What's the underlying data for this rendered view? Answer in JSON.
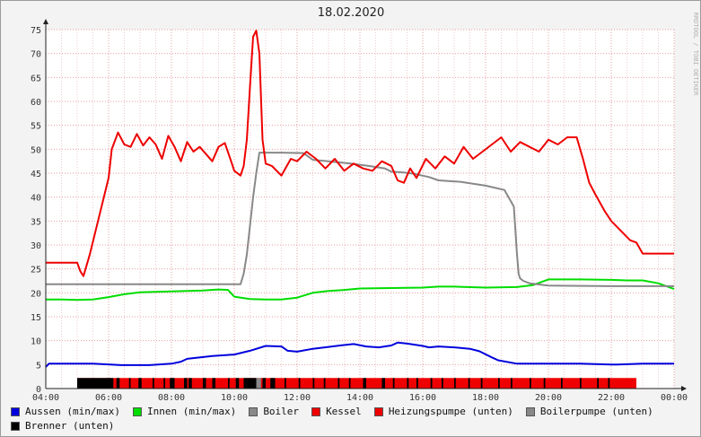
{
  "chart_data": {
    "type": "line",
    "title": "18.02.2020",
    "watermark": "RRDTOOL / TOBI OETIKER",
    "x_unit": "hour of day",
    "xlim": [
      4,
      24
    ],
    "ylim": [
      0,
      75
    ],
    "x_ticks": [
      4,
      6,
      8,
      10,
      12,
      14,
      16,
      18,
      20,
      22,
      24
    ],
    "x_tick_labels": [
      "04:00",
      "06:00",
      "08:00",
      "10:00",
      "12:00",
      "14:00",
      "16:00",
      "18:00",
      "20:00",
      "22:00",
      "00:00"
    ],
    "y_ticks": [
      0,
      5,
      10,
      15,
      20,
      25,
      30,
      35,
      40,
      45,
      50,
      55,
      60,
      65,
      70,
      75
    ],
    "y_tick_labels": [
      "0",
      "5",
      "10",
      "15",
      "20",
      "25",
      "30",
      "35",
      "40",
      "45",
      "50",
      "55",
      "60",
      "65",
      "70",
      "75"
    ],
    "grid": true,
    "legend_position": "bottom",
    "series": [
      {
        "name": "Aussen (min/max)",
        "color": "#0000dd",
        "x": [
          4,
          4.1,
          5.5,
          6.4,
          7.3,
          8.0,
          8.3,
          8.5,
          9.3,
          10.0,
          10.5,
          11.0,
          11.5,
          11.7,
          12.0,
          12.5,
          13.0,
          13.5,
          13.8,
          14.2,
          14.6,
          15.0,
          15.2,
          15.5,
          16.0,
          16.2,
          16.5,
          17.0,
          17.5,
          17.8,
          18.2,
          18.4,
          19.0,
          20.0,
          21.0,
          22.0,
          22.2,
          23.0,
          24.0
        ],
        "y": [
          4.5,
          5.2,
          5.2,
          4.9,
          4.9,
          5.2,
          5.6,
          6.2,
          6.8,
          7.1,
          7.9,
          8.9,
          8.8,
          7.9,
          7.7,
          8.3,
          8.7,
          9.1,
          9.3,
          8.8,
          8.6,
          9.0,
          9.6,
          9.4,
          8.9,
          8.6,
          8.8,
          8.6,
          8.3,
          7.8,
          6.5,
          5.9,
          5.2,
          5.2,
          5.2,
          5.0,
          5.0,
          5.2,
          5.2
        ]
      },
      {
        "name": "Innen (min/max)",
        "color": "#00dd00",
        "x": [
          4,
          4.5,
          5.0,
          5.5,
          6.0,
          6.5,
          7.0,
          8.0,
          9.0,
          9.5,
          9.8,
          10.0,
          10.5,
          11.0,
          11.5,
          12.0,
          12.5,
          13.0,
          13.5,
          14.0,
          15.0,
          16.0,
          16.5,
          17.0,
          18.0,
          19.0,
          19.5,
          20.0,
          21.0,
          22.0,
          22.5,
          23.0,
          23.5,
          24.0
        ],
        "y": [
          18.6,
          18.6,
          18.5,
          18.6,
          19.1,
          19.7,
          20.1,
          20.3,
          20.5,
          20.7,
          20.6,
          19.2,
          18.7,
          18.6,
          18.6,
          19.0,
          20.0,
          20.4,
          20.6,
          20.9,
          21.0,
          21.1,
          21.3,
          21.3,
          21.1,
          21.2,
          21.6,
          22.8,
          22.8,
          22.7,
          22.6,
          22.6,
          22.0,
          20.8
        ]
      },
      {
        "name": "Boiler",
        "color": "#888888",
        "x": [
          4,
          10.2,
          10.3,
          10.4,
          10.5,
          10.6,
          10.7,
          10.8,
          11.5,
          12.2,
          12.5,
          13.0,
          13.7,
          14.3,
          14.8,
          15.0,
          15.3,
          15.7,
          16.2,
          16.5,
          17.2,
          18.0,
          18.6,
          18.9,
          19.0,
          19.05,
          19.1,
          19.2,
          19.4,
          20.0,
          22.0,
          24.0
        ],
        "y": [
          21.8,
          21.8,
          24.0,
          28.0,
          34.0,
          40.0,
          45.0,
          49.3,
          49.3,
          49.2,
          47.8,
          47.5,
          47.0,
          46.5,
          46.0,
          45.3,
          45.2,
          44.9,
          44.2,
          43.5,
          43.2,
          42.4,
          41.5,
          38.0,
          28.0,
          24.0,
          23.0,
          22.5,
          22.0,
          21.5,
          21.4,
          21.4
        ]
      },
      {
        "name": "Kessel",
        "color": "#ee0000",
        "x": [
          4,
          5.0,
          5.1,
          5.2,
          5.4,
          5.7,
          6.0,
          6.1,
          6.3,
          6.5,
          6.7,
          6.9,
          7.1,
          7.3,
          7.5,
          7.7,
          7.9,
          8.1,
          8.3,
          8.5,
          8.7,
          8.9,
          9.1,
          9.3,
          9.5,
          9.7,
          9.9,
          10.0,
          10.2,
          10.3,
          10.4,
          10.5,
          10.6,
          10.7,
          10.8,
          10.9,
          11.0,
          11.2,
          11.5,
          11.8,
          12.0,
          12.3,
          12.6,
          12.9,
          13.2,
          13.5,
          13.8,
          14.1,
          14.4,
          14.7,
          15.0,
          15.2,
          15.4,
          15.6,
          15.8,
          16.1,
          16.4,
          16.7,
          17.0,
          17.3,
          17.6,
          17.9,
          18.2,
          18.5,
          18.8,
          19.1,
          19.4,
          19.7,
          20.0,
          20.3,
          20.6,
          20.9,
          21.1,
          21.3,
          21.5,
          21.8,
          22.0,
          22.3,
          22.6,
          22.8,
          23.0,
          24.0
        ],
        "y": [
          26.3,
          26.3,
          24.5,
          23.5,
          28.0,
          36.0,
          44.0,
          50.0,
          53.5,
          51.0,
          50.5,
          53.2,
          50.8,
          52.5,
          51.0,
          48.0,
          52.8,
          50.5,
          47.5,
          51.5,
          49.5,
          50.5,
          49.0,
          47.5,
          50.5,
          51.3,
          47.5,
          45.5,
          44.5,
          46.5,
          52.0,
          63.0,
          73.5,
          74.8,
          70.0,
          52.0,
          47.0,
          46.5,
          44.5,
          48.0,
          47.5,
          49.5,
          48.0,
          46.0,
          48.0,
          45.5,
          47.0,
          46.0,
          45.5,
          47.5,
          46.5,
          43.5,
          43.0,
          46.0,
          44.0,
          48.0,
          46.0,
          48.5,
          47.0,
          50.5,
          48.0,
          49.5,
          51.0,
          52.5,
          49.5,
          51.5,
          50.5,
          49.5,
          52.0,
          51.0,
          52.5,
          52.5,
          48.0,
          43.0,
          40.5,
          37.0,
          35.0,
          33.0,
          31.0,
          30.5,
          28.2,
          28.2
        ]
      }
    ],
    "on_off_bars": {
      "y_range": [
        0,
        2.2
      ],
      "heizungspumpe": {
        "name": "Heizungspumpe (unten)",
        "color": "#ee0000",
        "on": [
          [
            5.0,
            22.8
          ]
        ]
      },
      "boilerpumpe": {
        "name": "Boilerpumpe (unten)",
        "color": "#888888",
        "on": [
          [
            10.7,
            10.85
          ]
        ]
      },
      "brenner": {
        "name": "Brenner (unten)",
        "color": "#000000",
        "on": [
          [
            5.0,
            6.15
          ],
          [
            6.25,
            6.35
          ],
          [
            6.65,
            6.7
          ],
          [
            6.95,
            7.05
          ],
          [
            7.4,
            7.45
          ],
          [
            7.75,
            7.8
          ],
          [
            7.95,
            8.1
          ],
          [
            8.4,
            8.5
          ],
          [
            8.55,
            8.65
          ],
          [
            9.0,
            9.1
          ],
          [
            9.3,
            9.4
          ],
          [
            9.8,
            9.85
          ],
          [
            10.05,
            10.15
          ],
          [
            10.3,
            10.7
          ],
          [
            10.9,
            11.0
          ],
          [
            11.15,
            11.3
          ],
          [
            11.6,
            11.65
          ],
          [
            12.05,
            12.1
          ],
          [
            12.5,
            12.55
          ],
          [
            12.85,
            12.9
          ],
          [
            13.3,
            13.35
          ],
          [
            13.65,
            13.7
          ],
          [
            14.1,
            14.2
          ],
          [
            14.7,
            14.8
          ],
          [
            15.05,
            15.1
          ],
          [
            15.5,
            15.55
          ],
          [
            15.8,
            15.85
          ],
          [
            16.25,
            16.3
          ],
          [
            16.6,
            16.65
          ],
          [
            17.0,
            17.05
          ],
          [
            17.45,
            17.5
          ],
          [
            17.85,
            17.9
          ],
          [
            18.4,
            18.45
          ],
          [
            18.8,
            18.85
          ],
          [
            19.4,
            19.45
          ],
          [
            19.85,
            19.9
          ],
          [
            20.4,
            20.45
          ],
          [
            21.0,
            21.05
          ],
          [
            21.55,
            21.6
          ],
          [
            21.9,
            21.95
          ]
        ]
      }
    }
  },
  "legend": [
    {
      "label": "Aussen (min/max)",
      "color": "#0000dd"
    },
    {
      "label": "Innen (min/max)",
      "color": "#00dd00"
    },
    {
      "label": "Boiler",
      "color": "#888888"
    },
    {
      "label": "Kessel",
      "color": "#ee0000"
    },
    {
      "label": "Heizungspumpe (unten)",
      "color": "#ee0000"
    },
    {
      "label": "Boilerpumpe (unten)",
      "color": "#888888"
    },
    {
      "label": "Brenner (unten)",
      "color": "#000000"
    }
  ]
}
